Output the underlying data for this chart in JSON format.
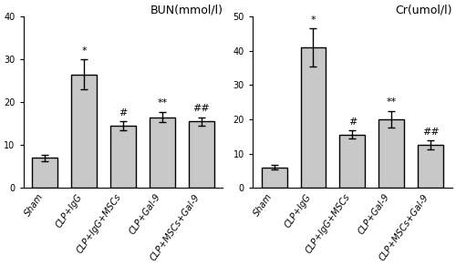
{
  "categories": [
    "Sham",
    "CLP+IgG",
    "CLP+IgG+MSCs",
    "CLP+Gal-9",
    "CLP+MSCs+Gal-9"
  ],
  "bun_values": [
    7.0,
    26.5,
    14.5,
    16.5,
    15.5
  ],
  "bun_errors": [
    0.8,
    3.5,
    1.0,
    1.2,
    1.0
  ],
  "bun_title": "BUN(mmol/l)",
  "bun_ylim": [
    0,
    40
  ],
  "bun_yticks": [
    0,
    10,
    20,
    30,
    40
  ],
  "bun_annotations": [
    "",
    "*",
    "#",
    "**",
    "##"
  ],
  "cr_values": [
    6.0,
    41.0,
    15.5,
    20.0,
    12.5
  ],
  "cr_errors": [
    0.7,
    5.5,
    1.2,
    2.5,
    1.3
  ],
  "cr_title": "Cr(umol/l)",
  "cr_ylim": [
    0,
    50
  ],
  "cr_yticks": [
    0,
    10,
    20,
    30,
    40,
    50
  ],
  "cr_annotations": [
    "",
    "*",
    "#",
    "**",
    "##"
  ],
  "bar_color": "#c8c8c8",
  "bar_edgecolor": "#000000",
  "bar_linewidth": 1.0,
  "bar_width": 0.65,
  "errorbar_color": "#000000",
  "errorbar_capsize": 3,
  "errorbar_linewidth": 1.0,
  "annotation_fontsize": 8,
  "title_fontsize": 9,
  "tick_fontsize": 7,
  "ylabel_fontsize": 8,
  "figure_bg": "#ffffff"
}
